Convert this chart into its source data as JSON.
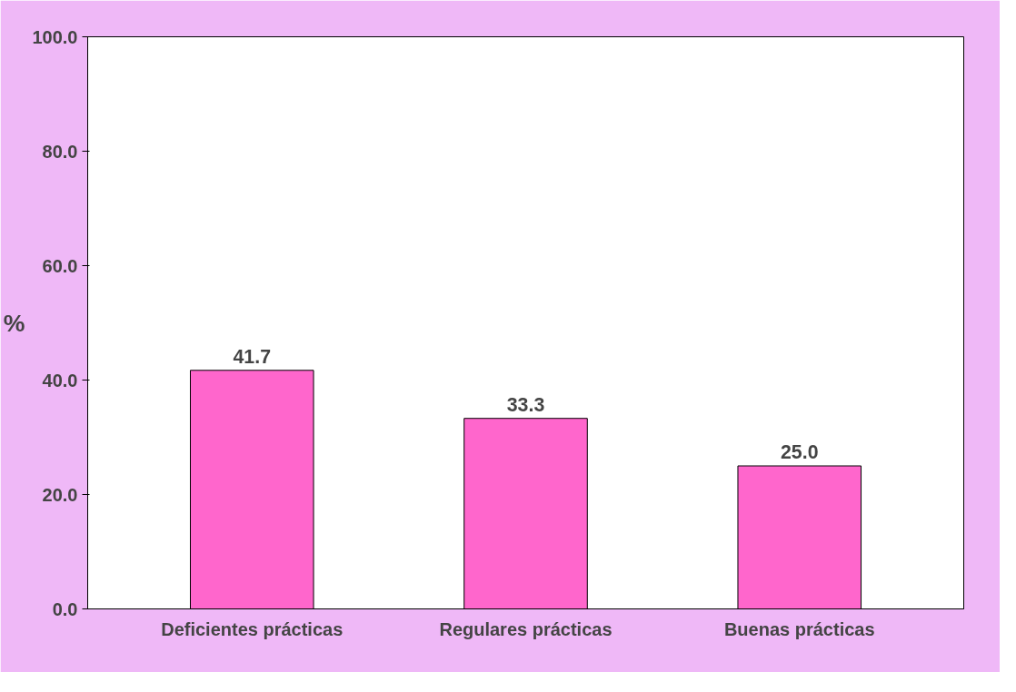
{
  "chart_data": {
    "type": "bar",
    "ylabel": "%",
    "categories": [
      "Deficientes prácticas",
      "Regulares prácticas",
      "Buenas prácticas"
    ],
    "values": [
      41.7,
      33.3,
      25.0
    ],
    "color": "#ff66cc",
    "value_labels": [
      "41.7",
      "33.3",
      "25.0"
    ],
    "ylim": [
      0,
      100
    ],
    "yticks": [
      {
        "value": 0,
        "label": "0.0"
      },
      {
        "value": 20,
        "label": "20.0"
      },
      {
        "value": 40,
        "label": "40.0"
      },
      {
        "value": 60,
        "label": "60.0"
      },
      {
        "value": 80,
        "label": "80.0"
      },
      {
        "value": 100,
        "label": "100.0"
      }
    ],
    "grid": false
  }
}
